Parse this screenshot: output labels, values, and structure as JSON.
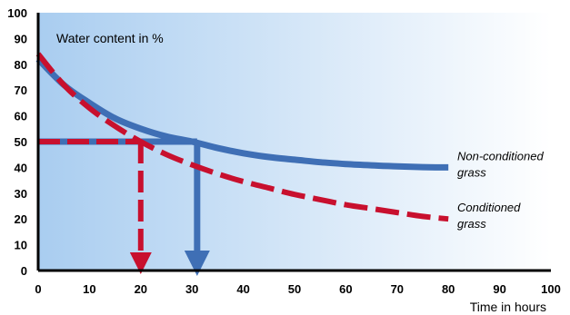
{
  "chart_data": {
    "type": "line",
    "title": "Water content in %",
    "xlabel": "Time in hours",
    "ylabel": "",
    "xlim": [
      0,
      100
    ],
    "ylim": [
      0,
      100
    ],
    "x_ticks": [
      "0",
      "10",
      "20",
      "30",
      "40",
      "50",
      "60",
      "70",
      "80",
      "90",
      "100"
    ],
    "y_ticks": [
      "0",
      "10",
      "20",
      "30",
      "40",
      "50",
      "60",
      "70",
      "80",
      "90",
      "100"
    ],
    "grid": false,
    "series": [
      {
        "name": "Non-conditioned grass",
        "name_lines": [
          "Non-conditioned",
          "grass"
        ],
        "color": "#3f6fb5",
        "x": [
          0,
          5,
          10,
          15,
          20,
          25,
          30,
          35,
          40,
          45,
          50,
          55,
          60,
          65,
          70,
          75,
          80
        ],
        "y": [
          82,
          72,
          65,
          59,
          55,
          52,
          50,
          47.5,
          45.5,
          44,
          43,
          42,
          41.3,
          40.8,
          40.4,
          40.1,
          40
        ]
      },
      {
        "name": "Conditioned grass",
        "name_lines": [
          "Conditioned",
          "grass"
        ],
        "color": "#c8102e",
        "x": [
          0,
          5,
          10,
          15,
          20,
          25,
          30,
          35,
          40,
          45,
          50,
          55,
          60,
          65,
          70,
          75,
          80
        ],
        "y": [
          84,
          72,
          63,
          56,
          50,
          45,
          41,
          37.5,
          34.5,
          32,
          29.5,
          27.5,
          25.5,
          24,
          22.5,
          21,
          20
        ]
      }
    ],
    "reference_lines": [
      {
        "series": "Non-conditioned grass",
        "y": 50,
        "x": 31
      },
      {
        "series": "Conditioned grass",
        "y": 50,
        "x": 20
      }
    ],
    "colors": {
      "background_start": "#a9cdf0",
      "background_end": "#ffffff",
      "non_conditioned": "#3f6fb5",
      "conditioned": "#c8102e"
    }
  }
}
